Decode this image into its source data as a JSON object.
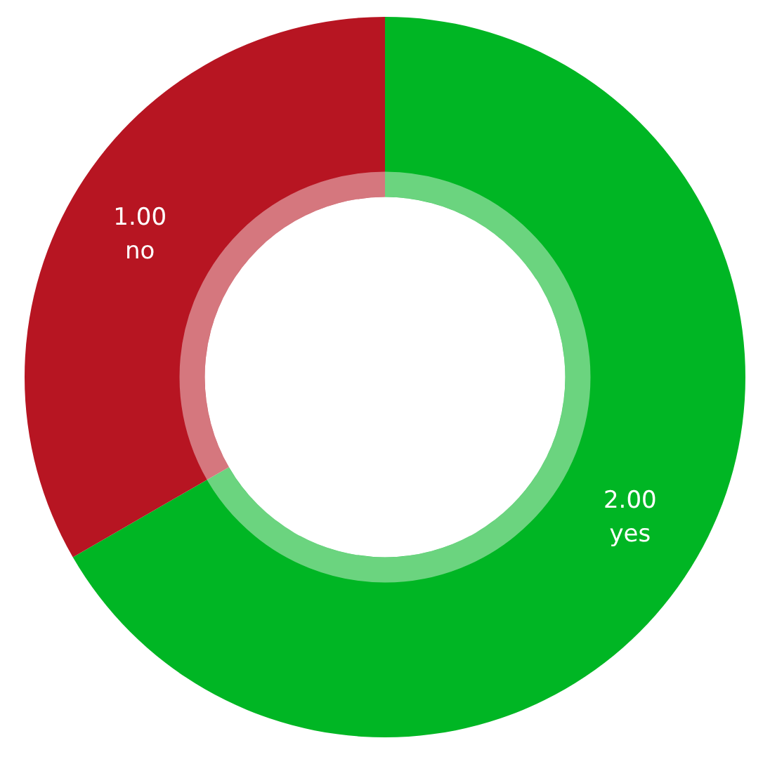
{
  "chart_data": {
    "type": "donut",
    "categories": [
      "yes",
      "no"
    ],
    "values": [
      2,
      1
    ],
    "colors": [
      "#00b624",
      "#b71522"
    ],
    "value_labels": [
      "2.00",
      "1.00"
    ],
    "legend": false
  }
}
